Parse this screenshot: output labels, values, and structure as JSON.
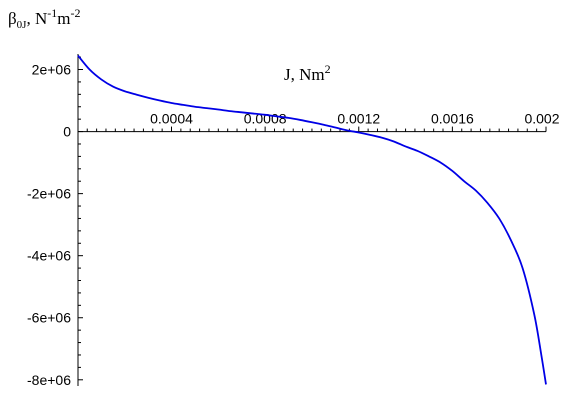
{
  "chart_data": {
    "type": "line",
    "ylabel": {
      "base": "β",
      "sub": "0J",
      "rest": ", N",
      "sup1": "-1",
      "mid": "m",
      "sup2": "-2"
    },
    "xlabel": {
      "base": "J, Nm",
      "sup": "2"
    },
    "xlim": [
      5e-07,
      0.002
    ],
    "ylim": [
      -8200000,
      2500000
    ],
    "x_ticks": [
      {
        "value": 0.0004,
        "label": "0.0004"
      },
      {
        "value": 0.0008,
        "label": "0.0008"
      },
      {
        "value": 0.0012,
        "label": "0.0012"
      },
      {
        "value": 0.0016,
        "label": "0.0016"
      },
      {
        "value": 0.002,
        "label": "0.002"
      }
    ],
    "y_ticks": [
      {
        "value": 2000000,
        "label": "2e+06"
      },
      {
        "value": 0,
        "label": "0"
      },
      {
        "value": -2000000,
        "label": "-2e+06"
      },
      {
        "value": -4000000,
        "label": "-4e+06"
      },
      {
        "value": -6000000,
        "label": "-6e+06"
      },
      {
        "value": -8000000,
        "label": "-8e+06"
      }
    ],
    "series": [
      {
        "color": "#0000e6",
        "points": [
          [
            5e-07,
            2450000
          ],
          [
            5e-05,
            2000000
          ],
          [
            0.0001,
            1680000
          ],
          [
            0.00015,
            1450000
          ],
          [
            0.0002,
            1300000
          ],
          [
            0.00025,
            1190000
          ],
          [
            0.0003,
            1090000
          ],
          [
            0.00035,
            1000000
          ],
          [
            0.0004,
            920000
          ],
          [
            0.00045,
            860000
          ],
          [
            0.0005,
            800000
          ],
          [
            0.00055,
            755000
          ],
          [
            0.0006,
            710000
          ],
          [
            0.00065,
            660000
          ],
          [
            0.0007,
            620000
          ],
          [
            0.00075,
            580000
          ],
          [
            0.0008,
            540000
          ],
          [
            0.00085,
            490000
          ],
          [
            0.0009,
            440000
          ],
          [
            0.00095,
            375000
          ],
          [
            0.001,
            300000
          ],
          [
            0.00105,
            220000
          ],
          [
            0.0011,
            130000
          ],
          [
            0.00115,
            40000
          ],
          [
            0.0012,
            -30000
          ],
          [
            0.00125,
            -110000
          ],
          [
            0.0013,
            -200000
          ],
          [
            0.00135,
            -320000
          ],
          [
            0.0014,
            -480000
          ],
          [
            0.00145,
            -620000
          ],
          [
            0.0015,
            -800000
          ],
          [
            0.00155,
            -1000000
          ],
          [
            0.0016,
            -1270000
          ],
          [
            0.00165,
            -1600000
          ],
          [
            0.0017,
            -1900000
          ],
          [
            0.00175,
            -2300000
          ],
          [
            0.0018,
            -2800000
          ],
          [
            0.00185,
            -3500000
          ],
          [
            0.0019,
            -4400000
          ],
          [
            0.00195,
            -5900000
          ],
          [
            0.00198,
            -7200000
          ],
          [
            0.002,
            -8150000
          ]
        ]
      }
    ]
  }
}
